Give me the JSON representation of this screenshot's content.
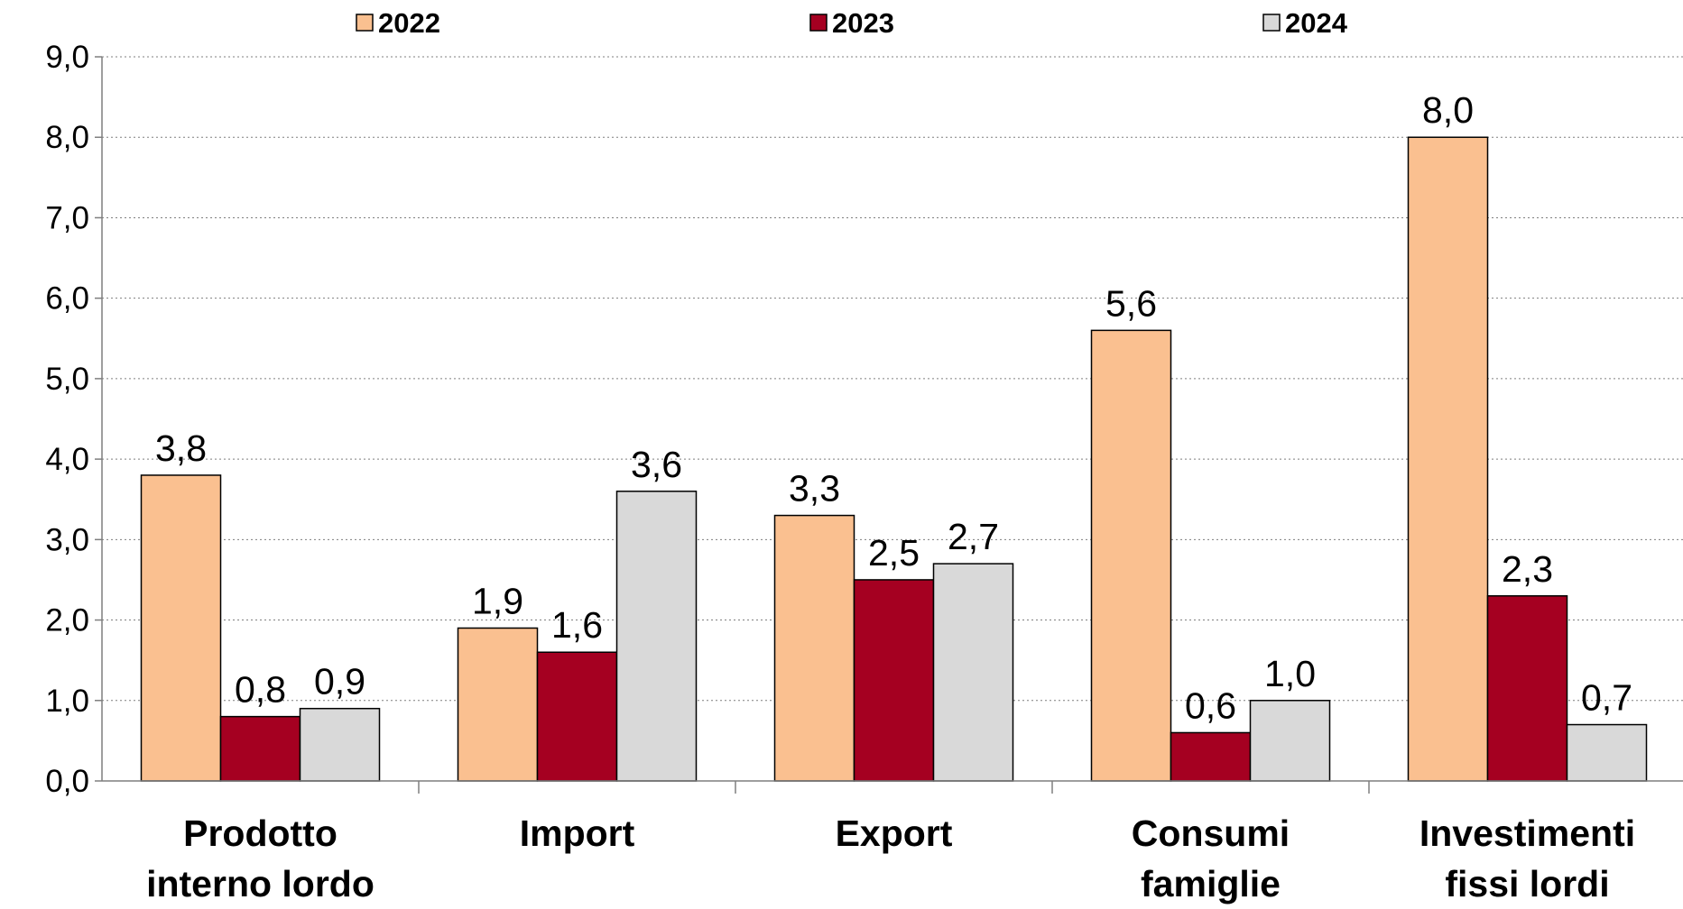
{
  "chart_data": {
    "type": "bar",
    "title": "",
    "xlabel": "",
    "ylabel": "",
    "categories": [
      [
        "Prodotto",
        "interno lordo"
      ],
      [
        "Import"
      ],
      [
        "Export"
      ],
      [
        "Consumi",
        "famiglie"
      ],
      [
        "Investimenti",
        "fissi lordi"
      ]
    ],
    "series": [
      {
        "name": "2022",
        "color": "#FAC090",
        "values": [
          3.8,
          1.9,
          3.3,
          5.6,
          8.0
        ],
        "labels": [
          "3,8",
          "1,9",
          "3,3",
          "5,6",
          "8,0"
        ]
      },
      {
        "name": "2023",
        "color": "#A50021",
        "values": [
          0.8,
          1.6,
          2.5,
          0.6,
          2.3
        ],
        "labels": [
          "0,8",
          "1,6",
          "2,5",
          "0,6",
          "2,3"
        ]
      },
      {
        "name": "2024",
        "color": "#D9D9D9",
        "values": [
          0.9,
          3.6,
          2.7,
          1.0,
          0.7
        ],
        "labels": [
          "0,9",
          "3,6",
          "2,7",
          "1,0",
          "0,7"
        ]
      }
    ],
    "ylim": [
      0,
      9
    ],
    "yticks": [
      0,
      1,
      2,
      3,
      4,
      5,
      6,
      7,
      8,
      9
    ],
    "ytick_labels": [
      "0,0",
      "1,0",
      "2,0",
      "3,0",
      "4,0",
      "5,0",
      "6,0",
      "7,0",
      "8,0",
      "9,0"
    ],
    "grid": true,
    "grid_style": "dotted",
    "legend_position": "top",
    "bar_outline_color": "#000000"
  }
}
